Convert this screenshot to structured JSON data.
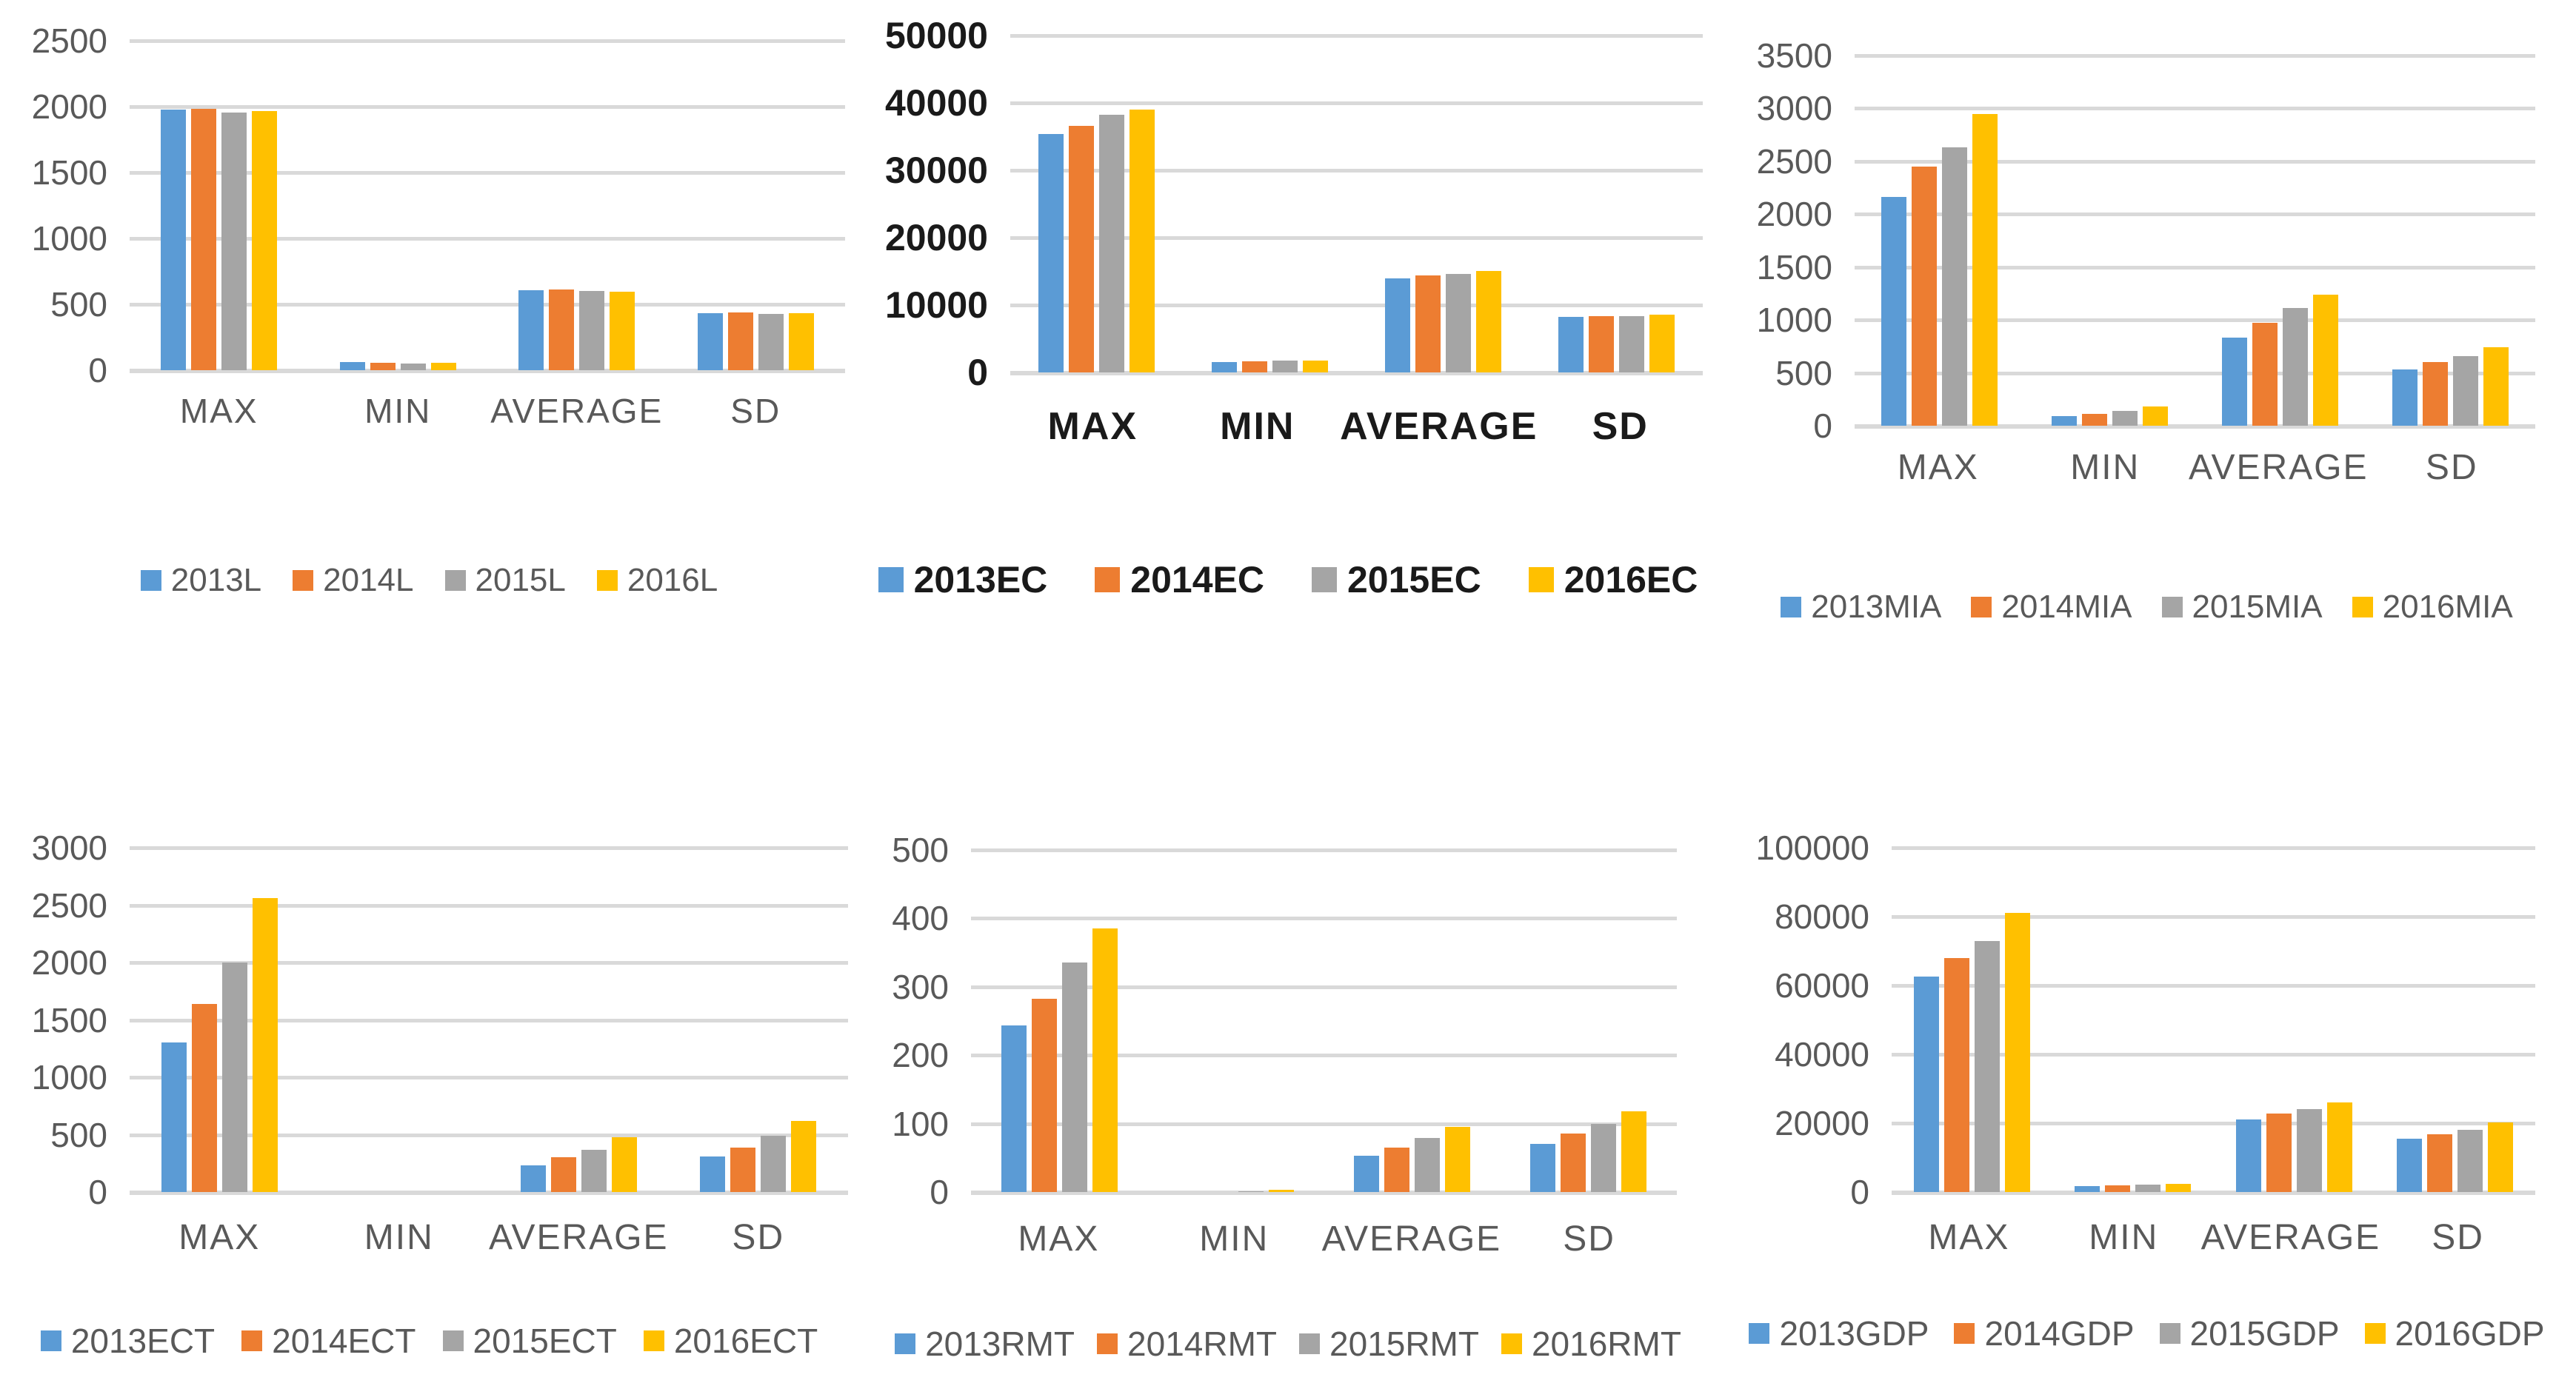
{
  "page": {
    "background": "#FFFFFF"
  },
  "palette": {
    "blue": "#5B9BD5",
    "orange": "#ED7D31",
    "gray": "#A5A5A5",
    "yellow": "#FFC000",
    "grid": "#D9D9D9",
    "axis_text": "#595959",
    "dark_text": "#1A1A1A"
  },
  "chart_data": [
    {
      "type": "bar",
      "name": "L",
      "position": "top-left",
      "title": "",
      "xlabel": "",
      "ylabel": "",
      "categories": [
        "MAX",
        "MIN",
        "AVERAGE",
        "SD"
      ],
      "series": [
        {
          "name": "2013L",
          "color": "blue",
          "values": [
            1975,
            62,
            605,
            430
          ]
        },
        {
          "name": "2014L",
          "color": "orange",
          "values": [
            1985,
            58,
            612,
            440
          ]
        },
        {
          "name": "2015L",
          "color": "gray",
          "values": [
            1955,
            48,
            602,
            428
          ]
        },
        {
          "name": "2016L",
          "color": "yellow",
          "values": [
            1965,
            57,
            596,
            430
          ]
        }
      ],
      "ylim": [
        0,
        2500
      ],
      "ytick_step": 500,
      "grid": true,
      "legend_position": "bottom",
      "text_color": "#595959",
      "bold_text": false
    },
    {
      "type": "bar",
      "name": "EC",
      "position": "top-middle",
      "title": "",
      "xlabel": "",
      "ylabel": "",
      "categories": [
        "MAX",
        "MIN",
        "AVERAGE",
        "SD"
      ],
      "series": [
        {
          "name": "2013EC",
          "color": "blue",
          "values": [
            35400,
            1500,
            14000,
            8200
          ]
        },
        {
          "name": "2014EC",
          "color": "orange",
          "values": [
            36600,
            1600,
            14400,
            8300
          ]
        },
        {
          "name": "2015EC",
          "color": "gray",
          "values": [
            38200,
            1800,
            14600,
            8400
          ]
        },
        {
          "name": "2016EC",
          "color": "yellow",
          "values": [
            39000,
            1750,
            15000,
            8600
          ]
        }
      ],
      "ylim": [
        0,
        50000
      ],
      "ytick_step": 10000,
      "grid": true,
      "legend_position": "bottom",
      "text_color": "#1A1A1A",
      "bold_text": true
    },
    {
      "type": "bar",
      "name": "MIA",
      "position": "top-right",
      "title": "",
      "xlabel": "",
      "ylabel": "",
      "categories": [
        "MAX",
        "MIN",
        "AVERAGE",
        "SD"
      ],
      "series": [
        {
          "name": "2013MIA",
          "color": "blue",
          "values": [
            2160,
            90,
            830,
            530
          ]
        },
        {
          "name": "2014MIA",
          "color": "orange",
          "values": [
            2450,
            110,
            970,
            600
          ]
        },
        {
          "name": "2015MIA",
          "color": "gray",
          "values": [
            2630,
            140,
            1110,
            660
          ]
        },
        {
          "name": "2016MIA",
          "color": "yellow",
          "values": [
            2950,
            185,
            1240,
            740
          ]
        }
      ],
      "ylim": [
        0,
        3500
      ],
      "ytick_step": 500,
      "grid": true,
      "legend_position": "bottom",
      "text_color": "#595959",
      "bold_text": false
    },
    {
      "type": "bar",
      "name": "ECT",
      "position": "bottom-left",
      "title": "",
      "xlabel": "",
      "ylabel": "",
      "categories": [
        "MAX",
        "MIN",
        "AVERAGE",
        "SD"
      ],
      "series": [
        {
          "name": "2013ECT",
          "color": "blue",
          "values": [
            1300,
            0,
            230,
            310
          ]
        },
        {
          "name": "2014ECT",
          "color": "orange",
          "values": [
            1640,
            0,
            300,
            390
          ]
        },
        {
          "name": "2015ECT",
          "color": "gray",
          "values": [
            2000,
            0,
            370,
            490
          ]
        },
        {
          "name": "2016ECT",
          "color": "yellow",
          "values": [
            2560,
            0,
            480,
            620
          ]
        }
      ],
      "ylim": [
        0,
        3000
      ],
      "ytick_step": 500,
      "grid": true,
      "legend_position": "bottom",
      "text_color": "#595959",
      "bold_text": false
    },
    {
      "type": "bar",
      "name": "RMT",
      "position": "bottom-middle",
      "title": "",
      "xlabel": "",
      "ylabel": "",
      "categories": [
        "MAX",
        "MIN",
        "AVERAGE",
        "SD"
      ],
      "series": [
        {
          "name": "2013RMT",
          "color": "blue",
          "values": [
            243,
            0,
            53,
            70
          ]
        },
        {
          "name": "2014RMT",
          "color": "orange",
          "values": [
            283,
            0,
            65,
            85
          ]
        },
        {
          "name": "2015RMT",
          "color": "gray",
          "values": [
            335,
            1,
            79,
            100
          ]
        },
        {
          "name": "2016RMT",
          "color": "yellow",
          "values": [
            385,
            3,
            95,
            118
          ]
        }
      ],
      "ylim": [
        0,
        500
      ],
      "ytick_step": 100,
      "grid": true,
      "legend_position": "bottom",
      "text_color": "#595959",
      "bold_text": false
    },
    {
      "type": "bar",
      "name": "GDP",
      "position": "bottom-right",
      "title": "",
      "xlabel": "",
      "ylabel": "",
      "categories": [
        "MAX",
        "MIN",
        "AVERAGE",
        "SD"
      ],
      "series": [
        {
          "name": "2013GDP",
          "color": "blue",
          "values": [
            62500,
            1700,
            21000,
            15500
          ]
        },
        {
          "name": "2014GDP",
          "color": "orange",
          "values": [
            68000,
            1900,
            22700,
            16800
          ]
        },
        {
          "name": "2015GDP",
          "color": "gray",
          "values": [
            73000,
            2100,
            24000,
            18000
          ]
        },
        {
          "name": "2016GDP",
          "color": "yellow",
          "values": [
            81000,
            2400,
            26000,
            20200
          ]
        }
      ],
      "ylim": [
        0,
        100000
      ],
      "ytick_step": 20000,
      "grid": true,
      "legend_position": "bottom",
      "text_color": "#595959",
      "bold_text": false
    }
  ]
}
